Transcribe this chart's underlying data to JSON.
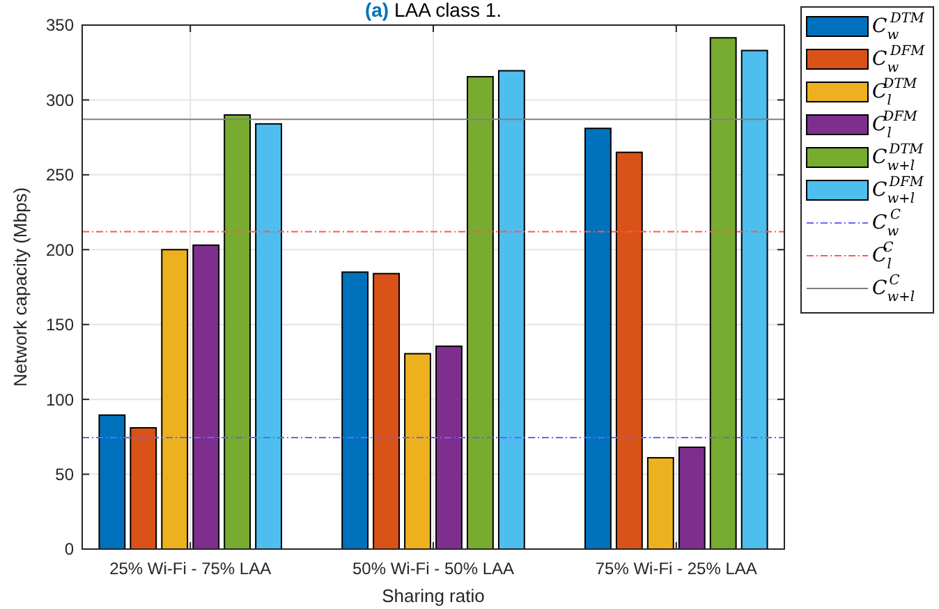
{
  "chart_data": {
    "type": "bar",
    "title": "(a) LAA class 1.",
    "xlabel": "Sharing ratio",
    "ylabel": "Network capacity (Mbps)",
    "categories": [
      "25% Wi-Fi - 75% LAA",
      "50% Wi-Fi - 50% LAA",
      "75% Wi-Fi - 25% LAA"
    ],
    "series": [
      {
        "name": "C$_{w}$$^{DTM}$",
        "color": "#0072bd",
        "values": [
          89.5,
          185,
          281
        ]
      },
      {
        "name": "C$_{w}$$^{DFM}$",
        "color": "#d95319",
        "values": [
          81,
          184,
          265
        ]
      },
      {
        "name": "C$_{l}$$^{DTM}$",
        "color": "#edb120",
        "values": [
          200,
          130.5,
          61
        ]
      },
      {
        "name": "C$_{l}$$^{DFM}$",
        "color": "#7e2f8e",
        "values": [
          203,
          135.5,
          68
        ]
      },
      {
        "name": "C$_{w+l}$$^{DTM}$",
        "color": "#77ac30",
        "values": [
          290,
          315.5,
          341.5
        ]
      },
      {
        "name": "C$_{w+l}$$^{DFM}$",
        "color": "#4dbeee",
        "values": [
          284,
          319.5,
          333
        ]
      }
    ],
    "ref_lines": [
      {
        "axis": "y",
        "value": 74.5,
        "label": "C$_{w}$$^{C}$",
        "color": "#6666ff",
        "line_style": "dashdot"
      },
      {
        "axis": "y",
        "value": 212,
        "label": "C$_{l}$$^{C}$",
        "color": "#ff5555",
        "line_style": "dashdot"
      },
      {
        "axis": "y",
        "value": 287,
        "label": "C$_{w+l}$$^{C}$",
        "color": "#808080",
        "line_style": "solid"
      }
    ],
    "ylim": [
      0,
      350
    ],
    "yticks": [
      0,
      50,
      100,
      150,
      200,
      250,
      300,
      350
    ],
    "grid": true,
    "legend": "right"
  }
}
